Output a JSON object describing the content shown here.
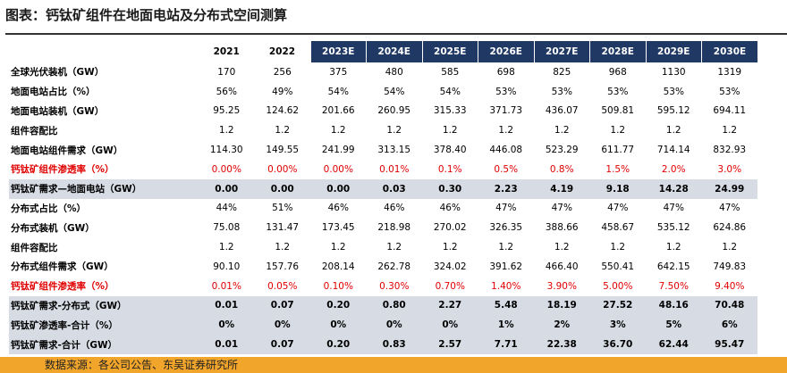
{
  "header": {
    "title": "图表：钙钛矿组件在地面电站及分布式空间测算"
  },
  "table": {
    "columns": [
      "2021",
      "2022",
      "2023E",
      "2024E",
      "2025E",
      "2026E",
      "2027E",
      "2028E",
      "2029E",
      "2030E"
    ],
    "rows": [
      [
        "全球光伏装机（GW）",
        "170",
        "256",
        "375",
        "480",
        "585",
        "698",
        "825",
        "968",
        "1130",
        "1319"
      ],
      [
        "地面电站占比（%）",
        "56%",
        "49%",
        "54%",
        "54%",
        "54%",
        "53%",
        "53%",
        "53%",
        "53%",
        "53%"
      ],
      [
        "地面电站装机（GW）",
        "95.25",
        "124.62",
        "201.66",
        "260.95",
        "315.33",
        "371.73",
        "436.07",
        "509.81",
        "595.12",
        "694.11"
      ],
      [
        "组件容配比",
        "1.2",
        "1.2",
        "1.2",
        "1.2",
        "1.2",
        "1.2",
        "1.2",
        "1.2",
        "1.2",
        "1.2"
      ],
      [
        "地面电站组件需求（GW）",
        "114.30",
        "149.55",
        "241.99",
        "313.15",
        "378.40",
        "446.08",
        "523.29",
        "611.77",
        "714.14",
        "832.93"
      ],
      [
        "钙钛矿组件渗透率（%）",
        "0.00%",
        "0.00%",
        "0.00%",
        "0.01%",
        "0.1%",
        "0.5%",
        "0.8%",
        "1.5%",
        "2.0%",
        "3.0%"
      ],
      [
        "钙钛矿需求—地面电站（GW）",
        "0.00",
        "0.00",
        "0.00",
        "0.03",
        "0.30",
        "2.23",
        "4.19",
        "9.18",
        "14.28",
        "24.99"
      ],
      [
        "分布式占比（%）",
        "44%",
        "51%",
        "46%",
        "46%",
        "46%",
        "47%",
        "47%",
        "47%",
        "47%",
        "47%"
      ],
      [
        "分布式装机（GW）",
        "75.08",
        "131.47",
        "173.45",
        "218.98",
        "270.02",
        "326.35",
        "388.66",
        "458.67",
        "535.12",
        "624.86"
      ],
      [
        "组件容配比",
        "1.2",
        "1.2",
        "1.2",
        "1.2",
        "1.2",
        "1.2",
        "1.2",
        "1.2",
        "1.2",
        "1.2"
      ],
      [
        "分布式组件需求（GW）",
        "90.10",
        "157.76",
        "208.14",
        "262.78",
        "324.02",
        "391.62",
        "466.40",
        "550.41",
        "642.15",
        "749.83"
      ],
      [
        "钙钛矿组件渗透率（%）",
        "0.01%",
        "0.05%",
        "0.10%",
        "0.30%",
        "0.70%",
        "1.40%",
        "3.90%",
        "5.00%",
        "7.50%",
        "9.40%"
      ],
      [
        "钙钛矿需求-分布式（GW）",
        "0.01",
        "0.07",
        "0.20",
        "0.80",
        "2.27",
        "5.48",
        "18.19",
        "27.52",
        "48.16",
        "70.48"
      ],
      [
        "钙钛矿渗透率-合计（%）",
        "0%",
        "0%",
        "0%",
        "0%",
        "0%",
        "1%",
        "2%",
        "3%",
        "5%",
        "6%"
      ],
      [
        "钙钛矿需求-合计（GW）",
        "0.01",
        "0.07",
        "0.20",
        "0.83",
        "2.57",
        "7.71",
        "22.38",
        "36.70",
        "62.44",
        "95.47"
      ]
    ]
  },
  "footer": {
    "source": "数据来源：各公司公告、东吴证券研究所"
  }
}
